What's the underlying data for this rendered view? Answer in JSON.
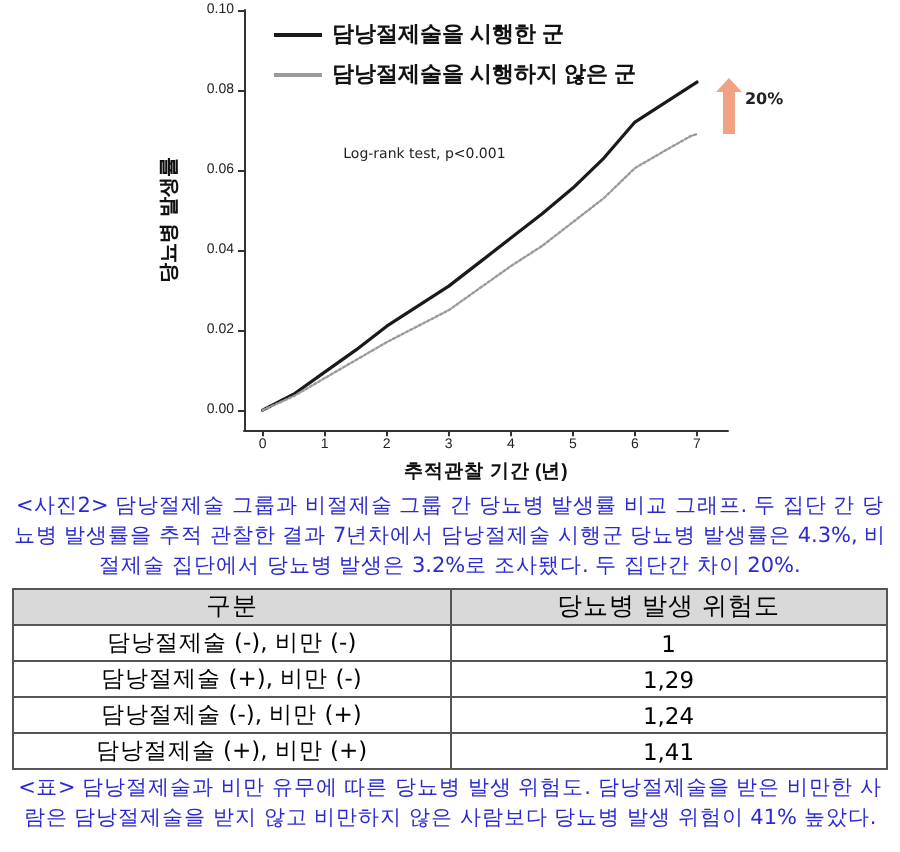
{
  "chart_data": [
    {
      "type": "line",
      "xlabel": "추적관찰 기간 (년)",
      "ylabel": "당뇨병 발생률",
      "xlim": [
        -0.3,
        7.5
      ],
      "xticks": [
        0,
        1,
        2,
        3,
        4,
        5,
        6,
        7
      ],
      "ylim": [
        -0.005,
        0.1
      ],
      "yticks": [
        {
          "value": 0,
          "label": "0.00"
        },
        {
          "value": 0.02,
          "label": "0.02"
        },
        {
          "value": 0.04,
          "label": "0.04"
        },
        {
          "value": 0.06,
          "label": "0.06"
        },
        {
          "value": 0.08,
          "label": "0.08"
        },
        {
          "value": 0.1,
          "label": "0.10"
        }
      ],
      "grid": false,
      "legend": "top left",
      "marker": "none",
      "series": [
        {
          "name": "담낭절제술을 시행한 군",
          "color": "#1a1a1a",
          "line_style": "solid",
          "x": [
            0,
            0.5,
            1,
            1.5,
            2,
            2.5,
            3,
            3.5,
            4,
            4.5,
            5,
            5.5,
            6,
            6.5,
            6.9,
            7
          ],
          "values": [
            0,
            0.004,
            0.0095,
            0.015,
            0.021,
            0.026,
            0.031,
            0.037,
            0.043,
            0.049,
            0.0555,
            0.063,
            0.072,
            0.077,
            0.081,
            0.082
          ]
        },
        {
          "name": "담낭절제술을 시행하지 않은 군",
          "color": "#9a9a9a",
          "line_style": "dotted",
          "x": [
            0,
            0.5,
            1,
            1.5,
            2,
            2.5,
            3,
            3.5,
            4,
            4.5,
            5,
            5.5,
            6,
            6.5,
            6.9,
            7
          ],
          "values": [
            0,
            0.0035,
            0.008,
            0.0125,
            0.017,
            0.021,
            0.025,
            0.0305,
            0.036,
            0.041,
            0.047,
            0.053,
            0.0605,
            0.065,
            0.0685,
            0.069
          ]
        }
      ],
      "annotations": [
        "Log-rank test, p<0.001",
        "20%",
        "<사진2> 담낭절제술 그룹과 비절제술 그룹 간 당뇨병 발생률 비교 그래프. 두 집단 간 당뇨병 발생률을 추적 관찰한 결과 7년차에서 담낭절제술 시행군 당뇨병 발생률은 4.3%, 비절제술 집단에서 당뇨병 발생은 3.2%로 조사됐다. 두 집단간 차이 20%."
      ]
    },
    {
      "type": "other",
      "xlabel": "구분",
      "ylabel": "당뇨병 발생 위험도",
      "categories": [
        "담낭절제술 (-), 비만 (-)",
        "담낭절제술 (+), 비만 (-)",
        "담낭절제술 (-), 비만 (+)",
        "담낭절제술 (+), 비만 (+)"
      ],
      "value_labels": [
        "1",
        "1,29",
        "1,24",
        "1,41"
      ],
      "annotations": [
        "<표> 담낭절제술과 비만 유무에 따른 당뇨병 발생 위험도. 담낭절제술을 받은 비만한 사람은 담낭절제술을 받지 않고 비만하지 않은 사람보다 당뇨병 발생 위험이 41% 높았다."
      ]
    }
  ]
}
